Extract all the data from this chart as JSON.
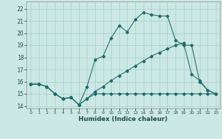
{
  "background_color": "#cce8e4",
  "grid_color": "#aad0cc",
  "line_color": "#1a6b6b",
  "xlabel": "Humidex (Indice chaleur)",
  "xlim": [
    -0.5,
    23.5
  ],
  "ylim": [
    13.8,
    22.6
  ],
  "yticks": [
    14,
    15,
    16,
    17,
    18,
    19,
    20,
    21,
    22
  ],
  "xticks": [
    0,
    1,
    2,
    3,
    4,
    5,
    6,
    7,
    8,
    9,
    10,
    11,
    12,
    13,
    14,
    15,
    16,
    17,
    18,
    19,
    20,
    21,
    22,
    23
  ],
  "line1_x": [
    0,
    1,
    2,
    3,
    4,
    5,
    6,
    7,
    8,
    9,
    10,
    11,
    12,
    13,
    14,
    15,
    16,
    17,
    18,
    19,
    20,
    21,
    22,
    23
  ],
  "line1_y": [
    15.8,
    15.8,
    15.6,
    15.0,
    14.6,
    14.7,
    14.1,
    14.6,
    15.0,
    15.0,
    15.0,
    15.0,
    15.0,
    15.0,
    15.0,
    15.0,
    15.0,
    15.0,
    15.0,
    15.0,
    15.0,
    15.0,
    15.0,
    15.0
  ],
  "line2_x": [
    0,
    1,
    2,
    3,
    4,
    5,
    6,
    7,
    8,
    9,
    10,
    11,
    12,
    13,
    14,
    15,
    16,
    17,
    18,
    19,
    20,
    21,
    22,
    23
  ],
  "line2_y": [
    15.8,
    15.8,
    15.6,
    15.0,
    14.6,
    14.7,
    14.1,
    15.6,
    17.8,
    18.1,
    19.6,
    20.6,
    20.1,
    21.1,
    21.7,
    21.5,
    21.4,
    21.4,
    19.4,
    19.0,
    19.0,
    16.0,
    15.3,
    15.0
  ],
  "line3_x": [
    0,
    1,
    2,
    3,
    4,
    5,
    6,
    7,
    8,
    9,
    10,
    11,
    12,
    13,
    14,
    15,
    16,
    17,
    18,
    19,
    20,
    21,
    22,
    23
  ],
  "line3_y": [
    15.8,
    15.8,
    15.6,
    15.0,
    14.6,
    14.7,
    14.1,
    14.6,
    15.2,
    15.6,
    16.1,
    16.5,
    16.9,
    17.3,
    17.7,
    18.1,
    18.4,
    18.7,
    19.0,
    19.2,
    16.6,
    16.1,
    15.3,
    15.0
  ]
}
